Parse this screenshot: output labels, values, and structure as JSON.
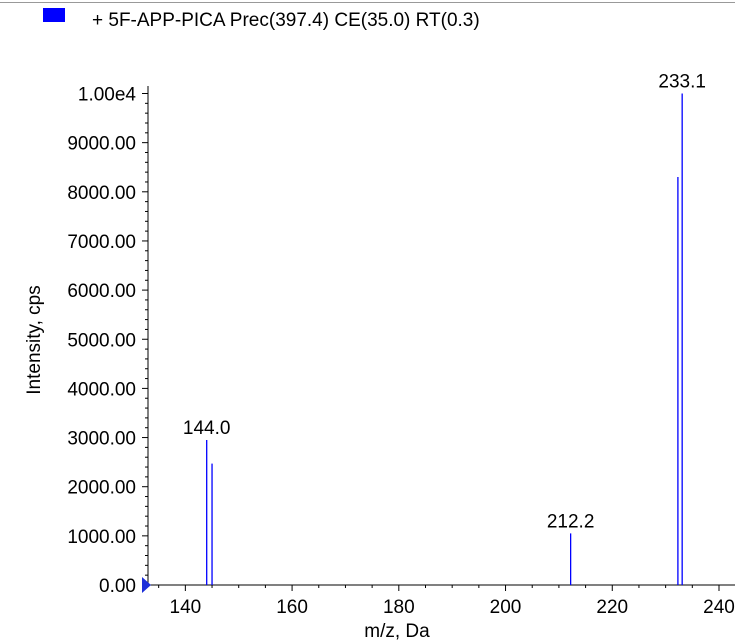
{
  "legend": {
    "swatch_color": "#0000ff",
    "label": "+ 5F-APP-PICA Prec(397.4) CE(35.0) RT(0.3)"
  },
  "chart_data": {
    "type": "bar",
    "subtype": "mass-spectrum-stick",
    "xlabel": "m/z, Da",
    "ylabel": "Intensity, cps",
    "xlim": [
      133,
      243
    ],
    "ylim": [
      0,
      10000
    ],
    "x_ticks": [
      140,
      160,
      180,
      200,
      220,
      240
    ],
    "x_tick_labels": [
      "140",
      "160",
      "180",
      "200",
      "220",
      "240"
    ],
    "y_ticks": [
      0,
      1000,
      2000,
      3000,
      4000,
      5000,
      6000,
      7000,
      8000,
      9000,
      10000
    ],
    "y_tick_labels": [
      "0.00",
      "1000.00",
      "2000.00",
      "3000.00",
      "4000.00",
      "5000.00",
      "6000.00",
      "7000.00",
      "8000.00",
      "9000.00",
      "1.00e4"
    ],
    "series": [
      {
        "color": "#0000ff",
        "peaks": [
          {
            "mz": 144.0,
            "intensity": 2950
          },
          {
            "mz": 145.0,
            "intensity": 2470
          },
          {
            "mz": 212.2,
            "intensity": 1050
          },
          {
            "mz": 232.3,
            "intensity": 8300
          },
          {
            "mz": 233.1,
            "intensity": 10000
          }
        ]
      }
    ],
    "peak_labels": [
      {
        "mz": 144.0,
        "intensity": 2950,
        "text": "144.0"
      },
      {
        "mz": 212.2,
        "intensity": 1050,
        "text": "212.2"
      },
      {
        "mz": 233.1,
        "intensity": 10000,
        "text": "233.1"
      }
    ],
    "grid": false,
    "legend_position": "top-left"
  }
}
